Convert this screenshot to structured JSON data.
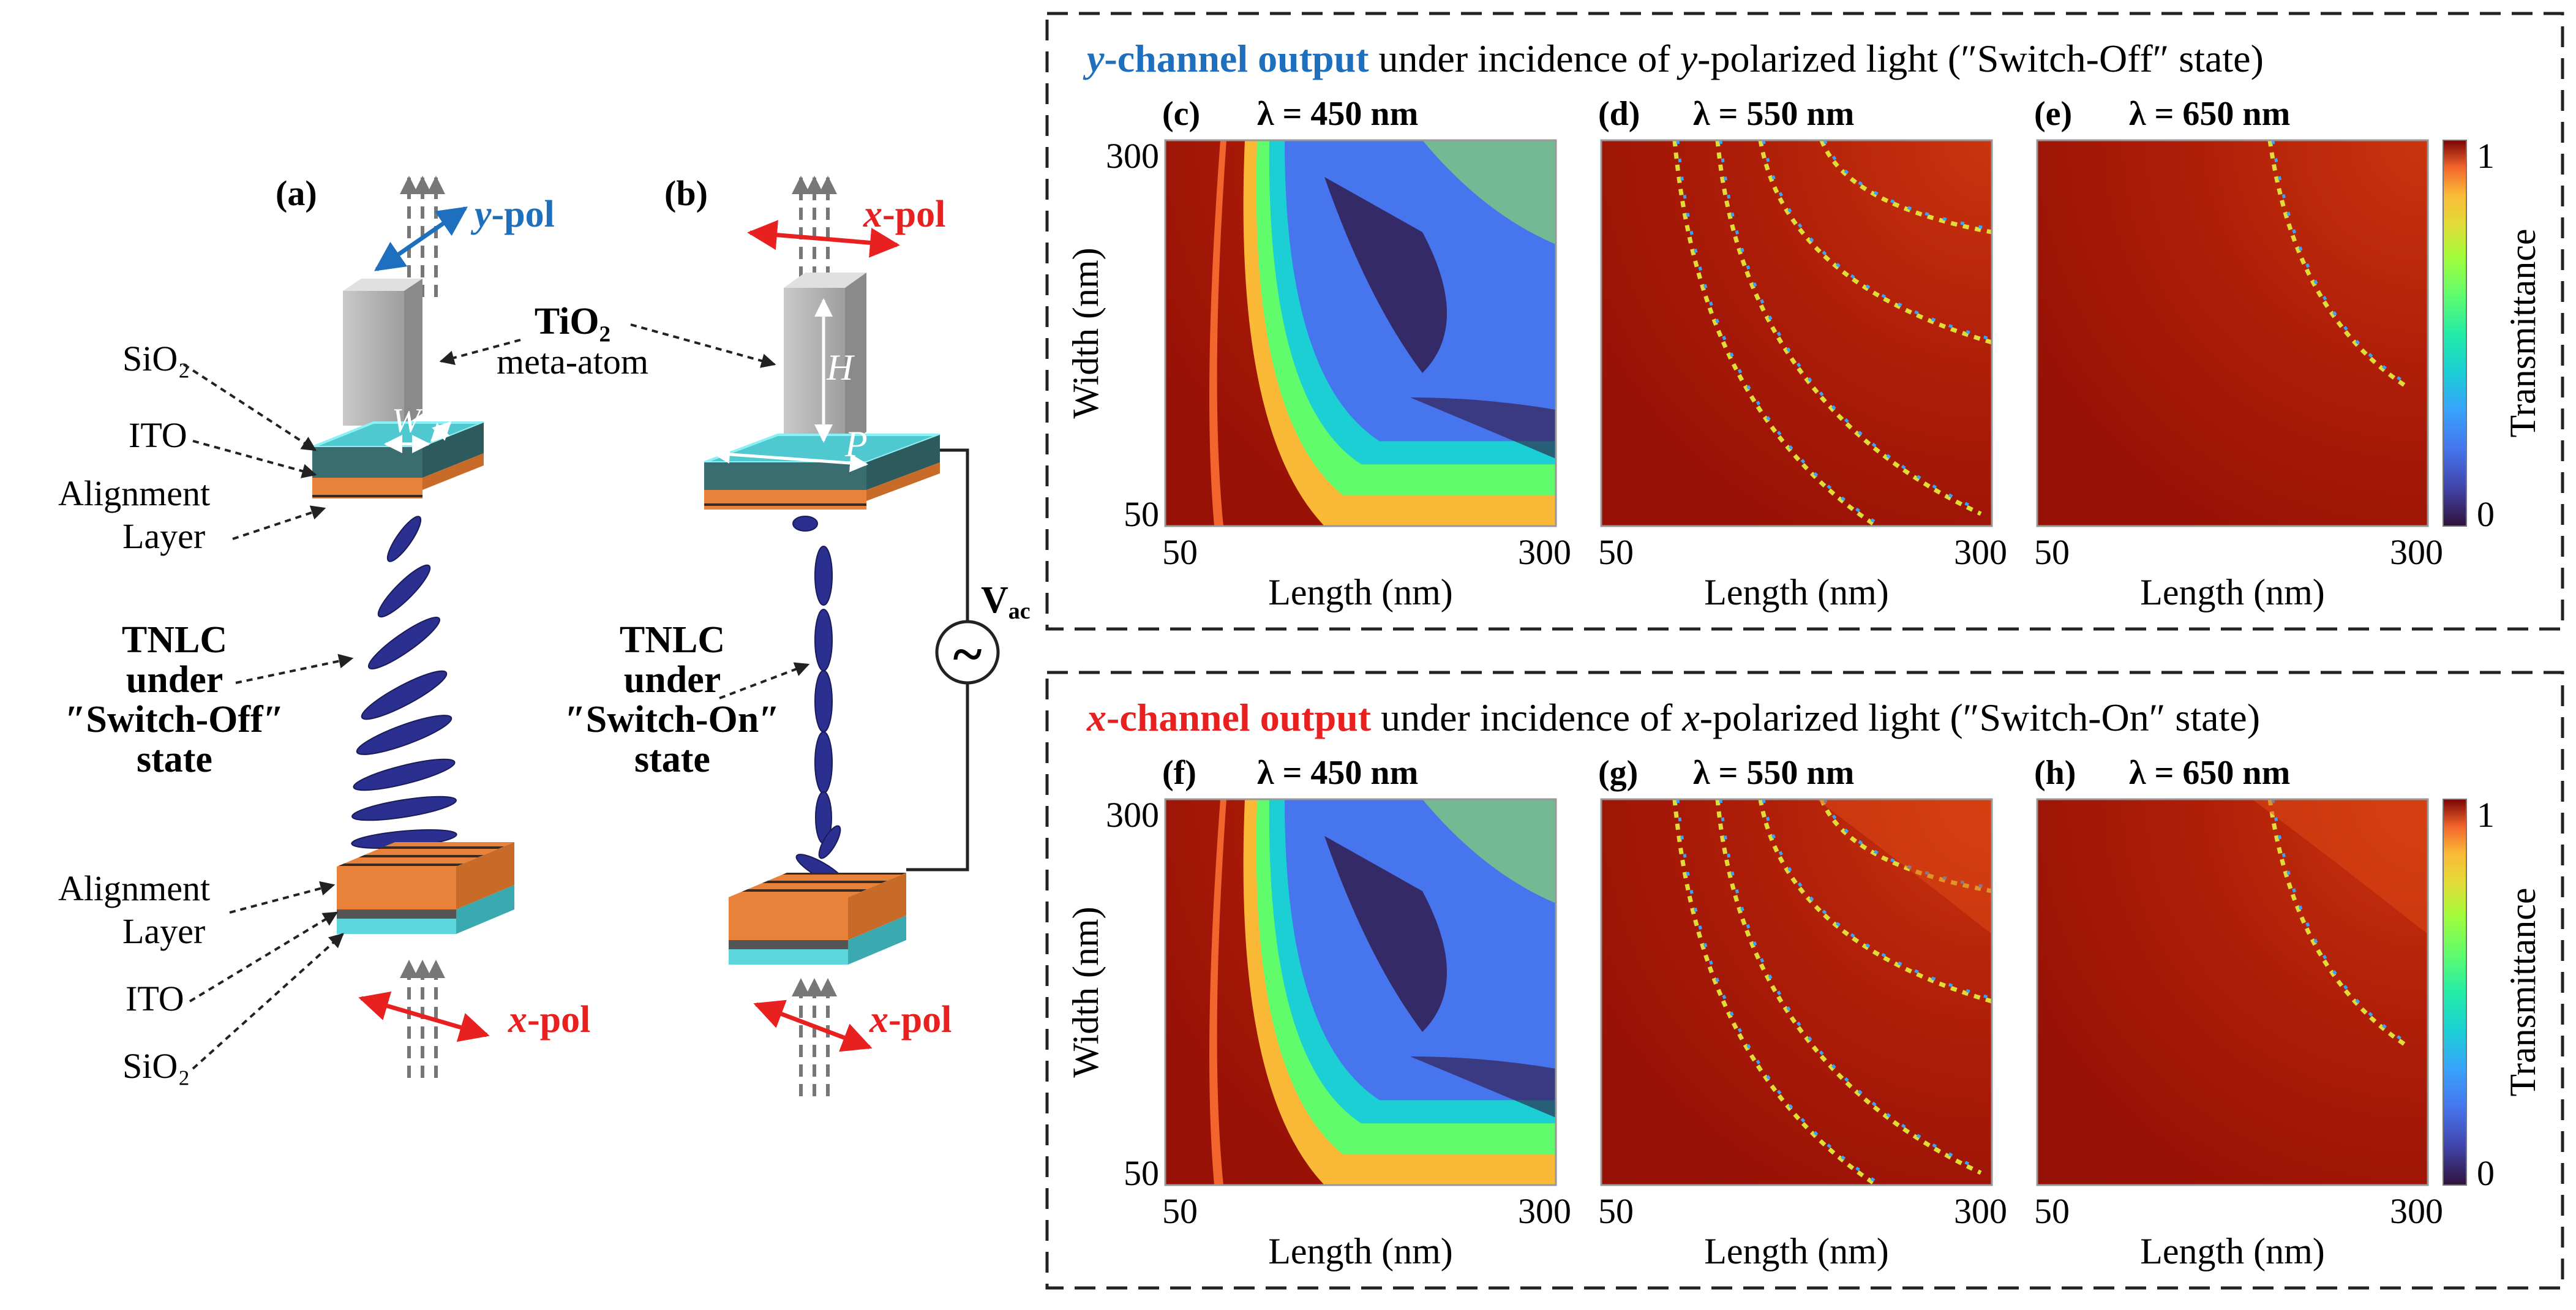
{
  "left_panels": {
    "a": {
      "tag": "(a)",
      "pol_top": {
        "letter": "y",
        "suffix": "-pol"
      },
      "pol_bottom": {
        "letter": "x",
        "suffix": "-pol"
      },
      "labels": {
        "sio2_top": "SiO₂",
        "ito_top": "ITO",
        "align_top_1": "Alignment",
        "align_top_2": "Layer",
        "tnlc_1": "TNLC",
        "tnlc_2": "under",
        "tnlc_3": "″Switch-Off″",
        "tnlc_4": "state",
        "align_bot_1": "Alignment",
        "align_bot_2": "Layer",
        "ito_bot": "ITO",
        "sio2_bot": "SiO₂"
      },
      "dims": {
        "W": "W",
        "L": "L"
      }
    },
    "b": {
      "tag": "(b)",
      "pol_top": {
        "letter": "x",
        "suffix": "-pol"
      },
      "pol_bottom": {
        "letter": "x",
        "suffix": "-pol"
      },
      "labels": {
        "tnlc_1": "TNLC",
        "tnlc_2": "under",
        "tnlc_3": "″Switch-On″",
        "tnlc_4": "state",
        "vac": "V",
        "vac_sub": "ac",
        "ac_symbol": "~"
      },
      "dims": {
        "H": "H",
        "P": "P"
      }
    },
    "tio2": {
      "main": "TiO₂",
      "sub": "meta-atom"
    }
  },
  "colors": {
    "blue_label": "#1f6fbf",
    "red_label": "#e8201f",
    "cmap_low": "#30123b",
    "cmap_high": "#7a0403",
    "nematic": "#2b2f8f",
    "alignment": "#e8823a",
    "ito": "#5cd6dc"
  },
  "groups": [
    {
      "id": "top",
      "title": {
        "pre_letter": "y",
        "pre_rest": "-channel output",
        "mid": " under incidence of ",
        "mid_letter": "y",
        "post": "-polarized light (″Switch-Off″ state)"
      },
      "title_color": "#1f6fbf",
      "panels": [
        {
          "tag": "(c)",
          "lambda": "λ = 450 nm"
        },
        {
          "tag": "(d)",
          "lambda": "λ = 550 nm"
        },
        {
          "tag": "(e)",
          "lambda": "λ = 650 nm"
        }
      ]
    },
    {
      "id": "bottom",
      "title": {
        "pre_letter": "x",
        "pre_rest": "-channel output",
        "mid": " under incidence of ",
        "mid_letter": "x",
        "post": "-polarized light (″Switch-On″ state)"
      },
      "title_color": "#e8201f",
      "panels": [
        {
          "tag": "(f)",
          "lambda": "λ = 450 nm"
        },
        {
          "tag": "(g)",
          "lambda": "λ = 550 nm"
        },
        {
          "tag": "(h)",
          "lambda": "λ = 650 nm"
        }
      ]
    }
  ],
  "axes": {
    "xlabel": "Length (nm)",
    "ylabel": "Width (nm)",
    "x_ticks": [
      "50",
      "300"
    ],
    "y_ticks": [
      "300",
      "50"
    ],
    "x_range": [
      50,
      300
    ],
    "y_range": [
      50,
      300
    ]
  },
  "colorbar": {
    "label": "Transmittance",
    "ticks": [
      "1",
      "0"
    ],
    "range": [
      0,
      1
    ]
  }
}
